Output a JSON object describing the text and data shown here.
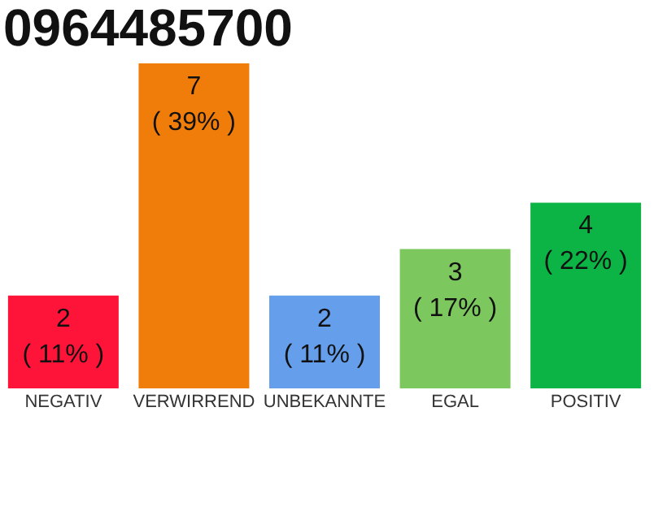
{
  "chart_data": {
    "type": "bar",
    "title": "0964485700",
    "categories": [
      "NEGATIV",
      "VERWIRREND",
      "UNBEKANNTE",
      "EGAL",
      "POSITIV"
    ],
    "values": [
      2,
      7,
      2,
      3,
      4
    ],
    "colors": [
      "#ff1439",
      "#f07d0a",
      "#659fec",
      "#7dc85e",
      "#0bb444"
    ],
    "value_labels": [
      "2\n( 11% )",
      "7\n( 39% )",
      "2\n( 11% )",
      "3\n( 17% )",
      "4\n( 22% )"
    ],
    "grid": false
  }
}
